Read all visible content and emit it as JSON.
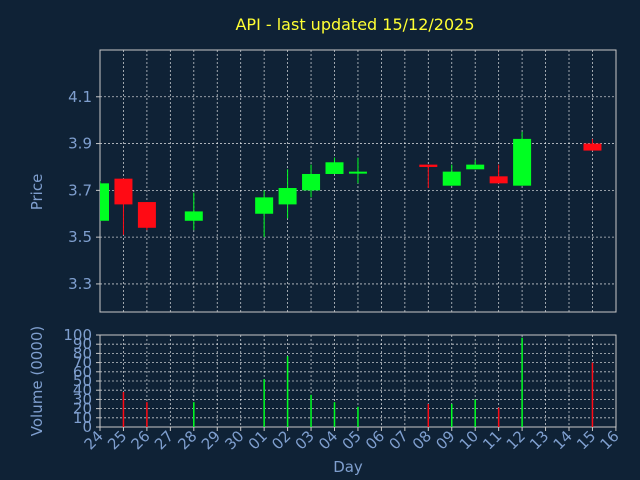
{
  "colors": {
    "background": "#0f2236",
    "title": "#ffff33",
    "axis_text": "#7f9fcf",
    "axis_line": "#c8c8c8",
    "grid": "#ffffff",
    "up": "#00ff22",
    "down": "#ff0a14"
  },
  "chart_data": [
    {
      "type": "candlestick",
      "title": "API - last updated 15/12/2025",
      "ylabel": "Price",
      "ylim": [
        3.18,
        4.3
      ],
      "y_ticks": [
        "3.3",
        "3.5",
        "3.7",
        "3.9",
        "4.1"
      ],
      "grid": true,
      "candles": [
        {
          "day": "24",
          "open": 3.57,
          "high": 3.74,
          "low": 3.57,
          "close": 3.73
        },
        {
          "day": "25",
          "open": 3.75,
          "high": 3.75,
          "low": 3.51,
          "close": 3.64
        },
        {
          "day": "26",
          "open": 3.65,
          "high": 3.65,
          "low": 3.53,
          "close": 3.54
        },
        {
          "day": "28",
          "open": 3.57,
          "high": 3.69,
          "low": 3.53,
          "close": 3.61
        },
        {
          "day": "01",
          "open": 3.6,
          "high": 3.7,
          "low": 3.5,
          "close": 3.67
        },
        {
          "day": "02",
          "open": 3.64,
          "high": 3.79,
          "low": 3.58,
          "close": 3.71
        },
        {
          "day": "03",
          "open": 3.7,
          "high": 3.81,
          "low": 3.67,
          "close": 3.77
        },
        {
          "day": "04",
          "open": 3.77,
          "high": 3.84,
          "low": 3.77,
          "close": 3.82
        },
        {
          "day": "05",
          "open": 3.775,
          "high": 3.84,
          "low": 3.73,
          "close": 3.78
        },
        {
          "day": "08",
          "open": 3.81,
          "high": 3.81,
          "low": 3.71,
          "close": 3.8
        },
        {
          "day": "09",
          "open": 3.72,
          "high": 3.81,
          "low": 3.72,
          "close": 3.78
        },
        {
          "day": "10",
          "open": 3.79,
          "high": 3.83,
          "low": 3.79,
          "close": 3.81
        },
        {
          "day": "11",
          "open": 3.76,
          "high": 3.81,
          "low": 3.73,
          "close": 3.73
        },
        {
          "day": "12",
          "open": 3.72,
          "high": 3.95,
          "low": 3.72,
          "close": 3.92
        },
        {
          "day": "15",
          "open": 3.9,
          "high": 3.92,
          "low": 3.87,
          "close": 3.87
        }
      ]
    },
    {
      "type": "bar",
      "ylabel": "Volume (0000)",
      "xlabel": "Day",
      "ylim": [
        0,
        100
      ],
      "y_ticks": [
        "0",
        "10",
        "20",
        "30",
        "40",
        "50",
        "60",
        "70",
        "80",
        "90",
        "100"
      ],
      "x_ticks": [
        "24",
        "25",
        "26",
        "27",
        "28",
        "29",
        "30",
        "01",
        "02",
        "03",
        "04",
        "05",
        "06",
        "07",
        "08",
        "09",
        "10",
        "11",
        "12",
        "13",
        "14",
        "15",
        "16"
      ],
      "grid": true,
      "bars": [
        {
          "day": "24",
          "value": 0,
          "direction": "up"
        },
        {
          "day": "25",
          "value": 38,
          "direction": "down"
        },
        {
          "day": "26",
          "value": 27,
          "direction": "down"
        },
        {
          "day": "28",
          "value": 27,
          "direction": "up"
        },
        {
          "day": "01",
          "value": 52,
          "direction": "up"
        },
        {
          "day": "02",
          "value": 77,
          "direction": "up"
        },
        {
          "day": "03",
          "value": 35,
          "direction": "up"
        },
        {
          "day": "04",
          "value": 27,
          "direction": "up"
        },
        {
          "day": "05",
          "value": 22,
          "direction": "up"
        },
        {
          "day": "08",
          "value": 25,
          "direction": "down"
        },
        {
          "day": "09",
          "value": 25,
          "direction": "up"
        },
        {
          "day": "10",
          "value": 30,
          "direction": "up"
        },
        {
          "day": "11",
          "value": 21,
          "direction": "down"
        },
        {
          "day": "12",
          "value": 97,
          "direction": "up"
        },
        {
          "day": "15",
          "value": 70,
          "direction": "down"
        }
      ]
    }
  ]
}
